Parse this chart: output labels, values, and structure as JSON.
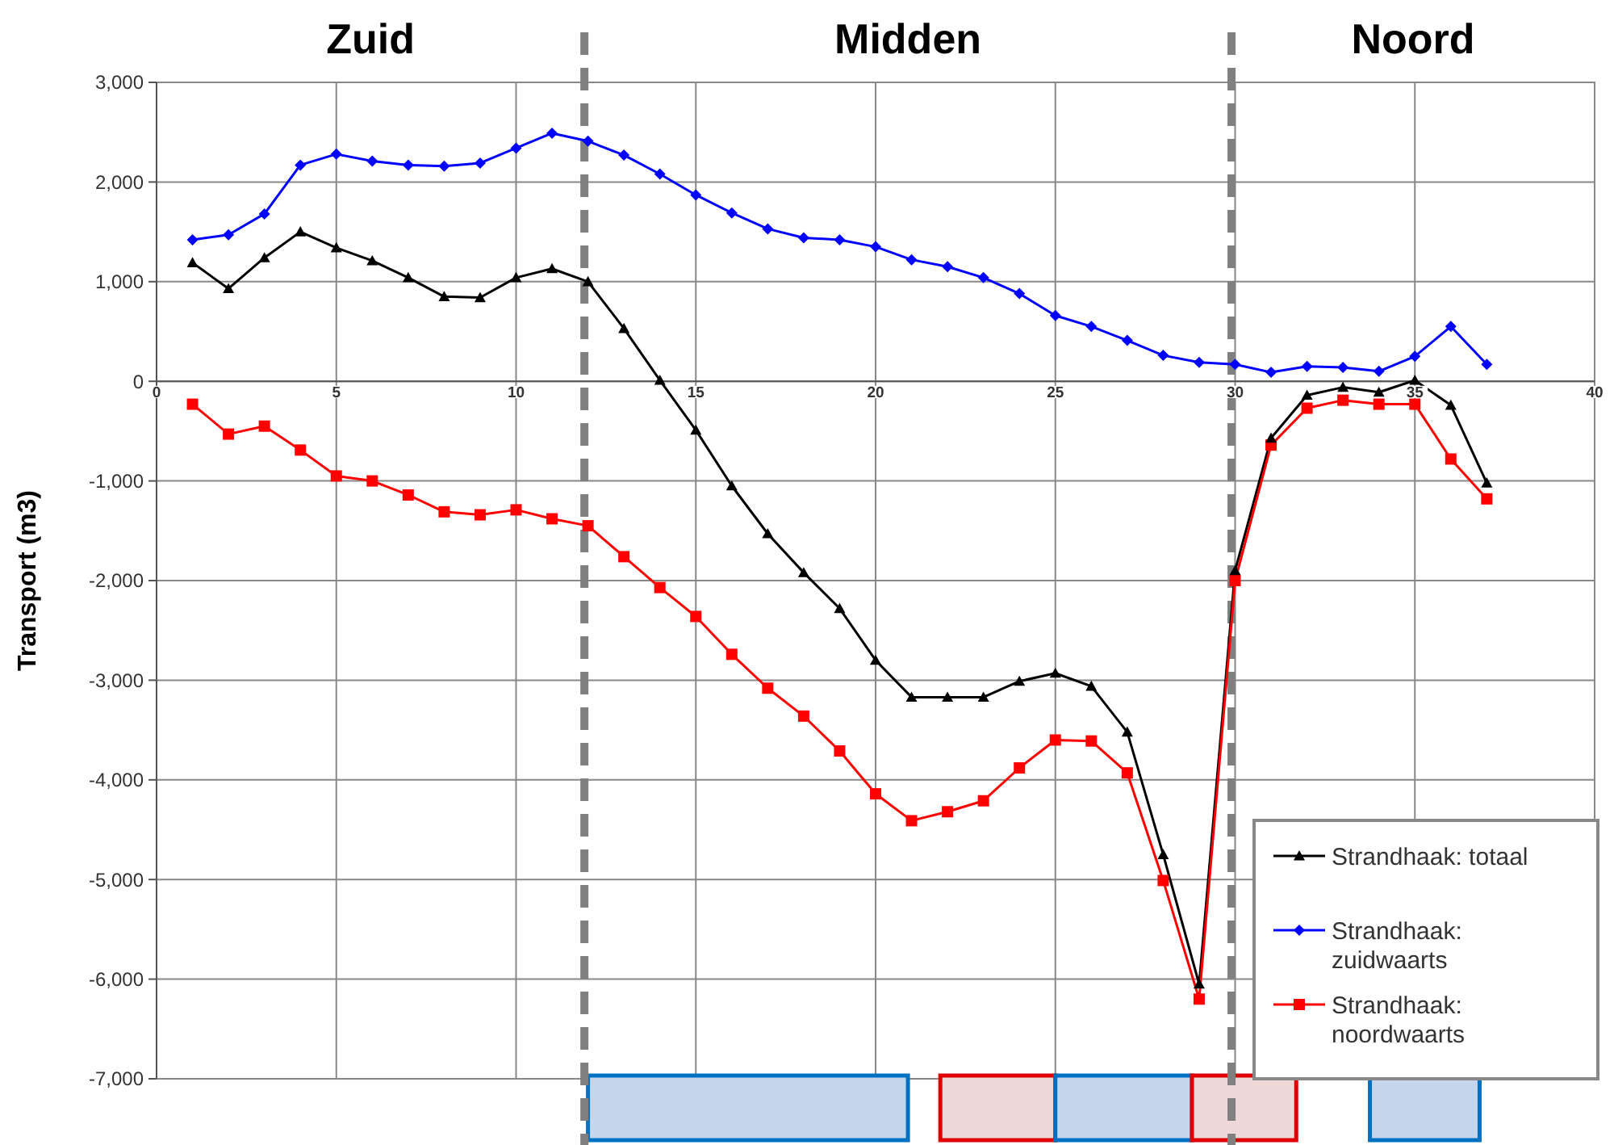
{
  "chart_data": {
    "type": "line",
    "ylabel": "Transport (m3)",
    "x": [
      1,
      2,
      3,
      4,
      5,
      6,
      7,
      8,
      9,
      10,
      11,
      12,
      13,
      14,
      15,
      16,
      17,
      18,
      19,
      20,
      21,
      22,
      23,
      24,
      25,
      26,
      27,
      28,
      29,
      30,
      31,
      32,
      33,
      34,
      35,
      36,
      37
    ],
    "series": [
      {
        "name": "Strandhaak: totaal",
        "color": "#000000",
        "marker": "triangle",
        "values": [
          1190,
          930,
          1240,
          1500,
          1340,
          1210,
          1040,
          850,
          840,
          1040,
          1130,
          1000,
          530,
          10,
          -490,
          -1050,
          -1530,
          -1920,
          -2280,
          -2800,
          -3170,
          -3170,
          -3170,
          -3010,
          -2930,
          -3060,
          -3520,
          -4750,
          -6050,
          -1900,
          -570,
          -140,
          -60,
          -110,
          10,
          -240,
          -1020
        ]
      },
      {
        "name": "Strandhaak: zuidwaarts",
        "color": "#0000ff",
        "marker": "diamond",
        "values": [
          1420,
          1470,
          1680,
          2170,
          2280,
          2210,
          2170,
          2160,
          2190,
          2340,
          2490,
          2410,
          2270,
          2080,
          1870,
          1690,
          1530,
          1440,
          1420,
          1350,
          1220,
          1150,
          1040,
          880,
          660,
          550,
          410,
          260,
          190,
          170,
          90,
          150,
          140,
          100,
          250,
          550,
          170
        ]
      },
      {
        "name": "Strandhaak: noordwaarts",
        "color": "#ff0000",
        "marker": "square",
        "values": [
          -230,
          -530,
          -450,
          -690,
          -950,
          -1000,
          -1140,
          -1310,
          -1340,
          -1290,
          -1380,
          -1450,
          -1760,
          -2070,
          -2360,
          -2740,
          -3080,
          -3360,
          -3710,
          -4140,
          -4410,
          -4320,
          -4210,
          -3880,
          -3600,
          -3610,
          -3930,
          -5010,
          -6200,
          -2000,
          -640,
          -270,
          -190,
          -230,
          -230,
          -780,
          -1180
        ]
      }
    ],
    "xlim": [
      0,
      40
    ],
    "xticks": [
      0,
      5,
      10,
      15,
      20,
      25,
      30,
      35,
      40
    ],
    "ylim": [
      -7000,
      3000
    ],
    "yticks": [
      {
        "value": 3000,
        "label": "3,000"
      },
      {
        "value": 2000,
        "label": "2,000"
      },
      {
        "value": 1000,
        "label": "1,000"
      },
      0,
      {
        "value": -1000,
        "label": "-1,000"
      },
      {
        "value": -2000,
        "label": "-2,000"
      },
      {
        "value": -3000,
        "label": "-3,000"
      },
      {
        "value": -4000,
        "label": "-4,000"
      },
      {
        "value": -5000,
        "label": "-5,000"
      },
      {
        "value": -6000,
        "label": "-6,000"
      },
      {
        "value": -7000,
        "label": "-7,000"
      }
    ],
    "grid": true,
    "legend": "bottom right",
    "line_style": "solid",
    "ref_lines": [
      {
        "axis": "x",
        "value": 11.9,
        "color": "#808080",
        "line_style": "dashed"
      },
      {
        "axis": "x",
        "value": 29.9,
        "color": "#808080",
        "line_style": "dashed"
      }
    ],
    "annotations": [
      "Zuid",
      "Midden",
      "Noord"
    ]
  }
}
